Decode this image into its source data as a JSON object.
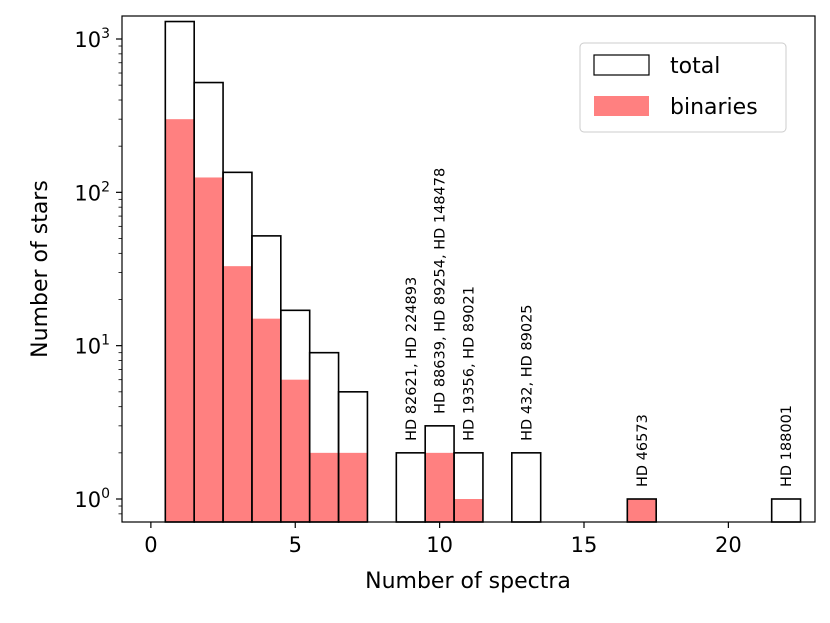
{
  "chart_data": {
    "type": "bar",
    "title": "",
    "xlabel": "Number of spectra",
    "ylabel": "Number of stars",
    "xlim": [
      -1,
      23
    ],
    "ylim_log10": [
      -0.15,
      3.15
    ],
    "yscale": "log",
    "x_ticks": [
      {
        "value": 0,
        "label": "0"
      },
      {
        "value": 5,
        "label": "5"
      },
      {
        "value": 10,
        "label": "10"
      },
      {
        "value": 15,
        "label": "15"
      },
      {
        "value": 20,
        "label": "20"
      }
    ],
    "y_ticks": [
      {
        "exp": 0,
        "base": "10",
        "sup": "0"
      },
      {
        "exp": 1,
        "base": "10",
        "sup": "1"
      },
      {
        "exp": 2,
        "base": "10",
        "sup": "2"
      },
      {
        "exp": 3,
        "base": "10",
        "sup": "3"
      }
    ],
    "bin_width": 1,
    "series": [
      {
        "name": "total",
        "style": "step",
        "color": "#000000",
        "bins": [
          {
            "x": 1,
            "value": 1300
          },
          {
            "x": 2,
            "value": 520
          },
          {
            "x": 3,
            "value": 135
          },
          {
            "x": 4,
            "value": 52
          },
          {
            "x": 5,
            "value": 17
          },
          {
            "x": 6,
            "value": 9
          },
          {
            "x": 7,
            "value": 5
          },
          {
            "x": 9,
            "value": 2
          },
          {
            "x": 10,
            "value": 3
          },
          {
            "x": 11,
            "value": 2
          },
          {
            "x": 13,
            "value": 2
          },
          {
            "x": 17,
            "value": 1
          },
          {
            "x": 22,
            "value": 1
          }
        ]
      },
      {
        "name": "binaries",
        "style": "filled",
        "color": "#ff8080",
        "bins": [
          {
            "x": 1,
            "value": 300
          },
          {
            "x": 2,
            "value": 125
          },
          {
            "x": 3,
            "value": 33
          },
          {
            "x": 4,
            "value": 15
          },
          {
            "x": 5,
            "value": 6
          },
          {
            "x": 6,
            "value": 2
          },
          {
            "x": 7,
            "value": 2
          },
          {
            "x": 10,
            "value": 2
          },
          {
            "x": 11,
            "value": 1
          },
          {
            "x": 17,
            "value": 1
          }
        ]
      }
    ],
    "annotations": [
      {
        "x": 9,
        "base_value": 2,
        "text": "HD 82621, HD 224893"
      },
      {
        "x": 10,
        "base_value": 3,
        "text": "HD 88639, HD 89254, HD 148478"
      },
      {
        "x": 11,
        "base_value": 2,
        "text": "HD 19356, HD 89021"
      },
      {
        "x": 13,
        "base_value": 2,
        "text": "HD 432, HD 89025"
      },
      {
        "x": 17,
        "base_value": 1,
        "text": "HD 46573"
      },
      {
        "x": 22,
        "base_value": 1,
        "text": "HD 188001"
      }
    ],
    "legend": {
      "location": "top-right",
      "entries": [
        {
          "label": "total",
          "kind": "outline"
        },
        {
          "label": "binaries",
          "kind": "filled"
        }
      ]
    }
  }
}
